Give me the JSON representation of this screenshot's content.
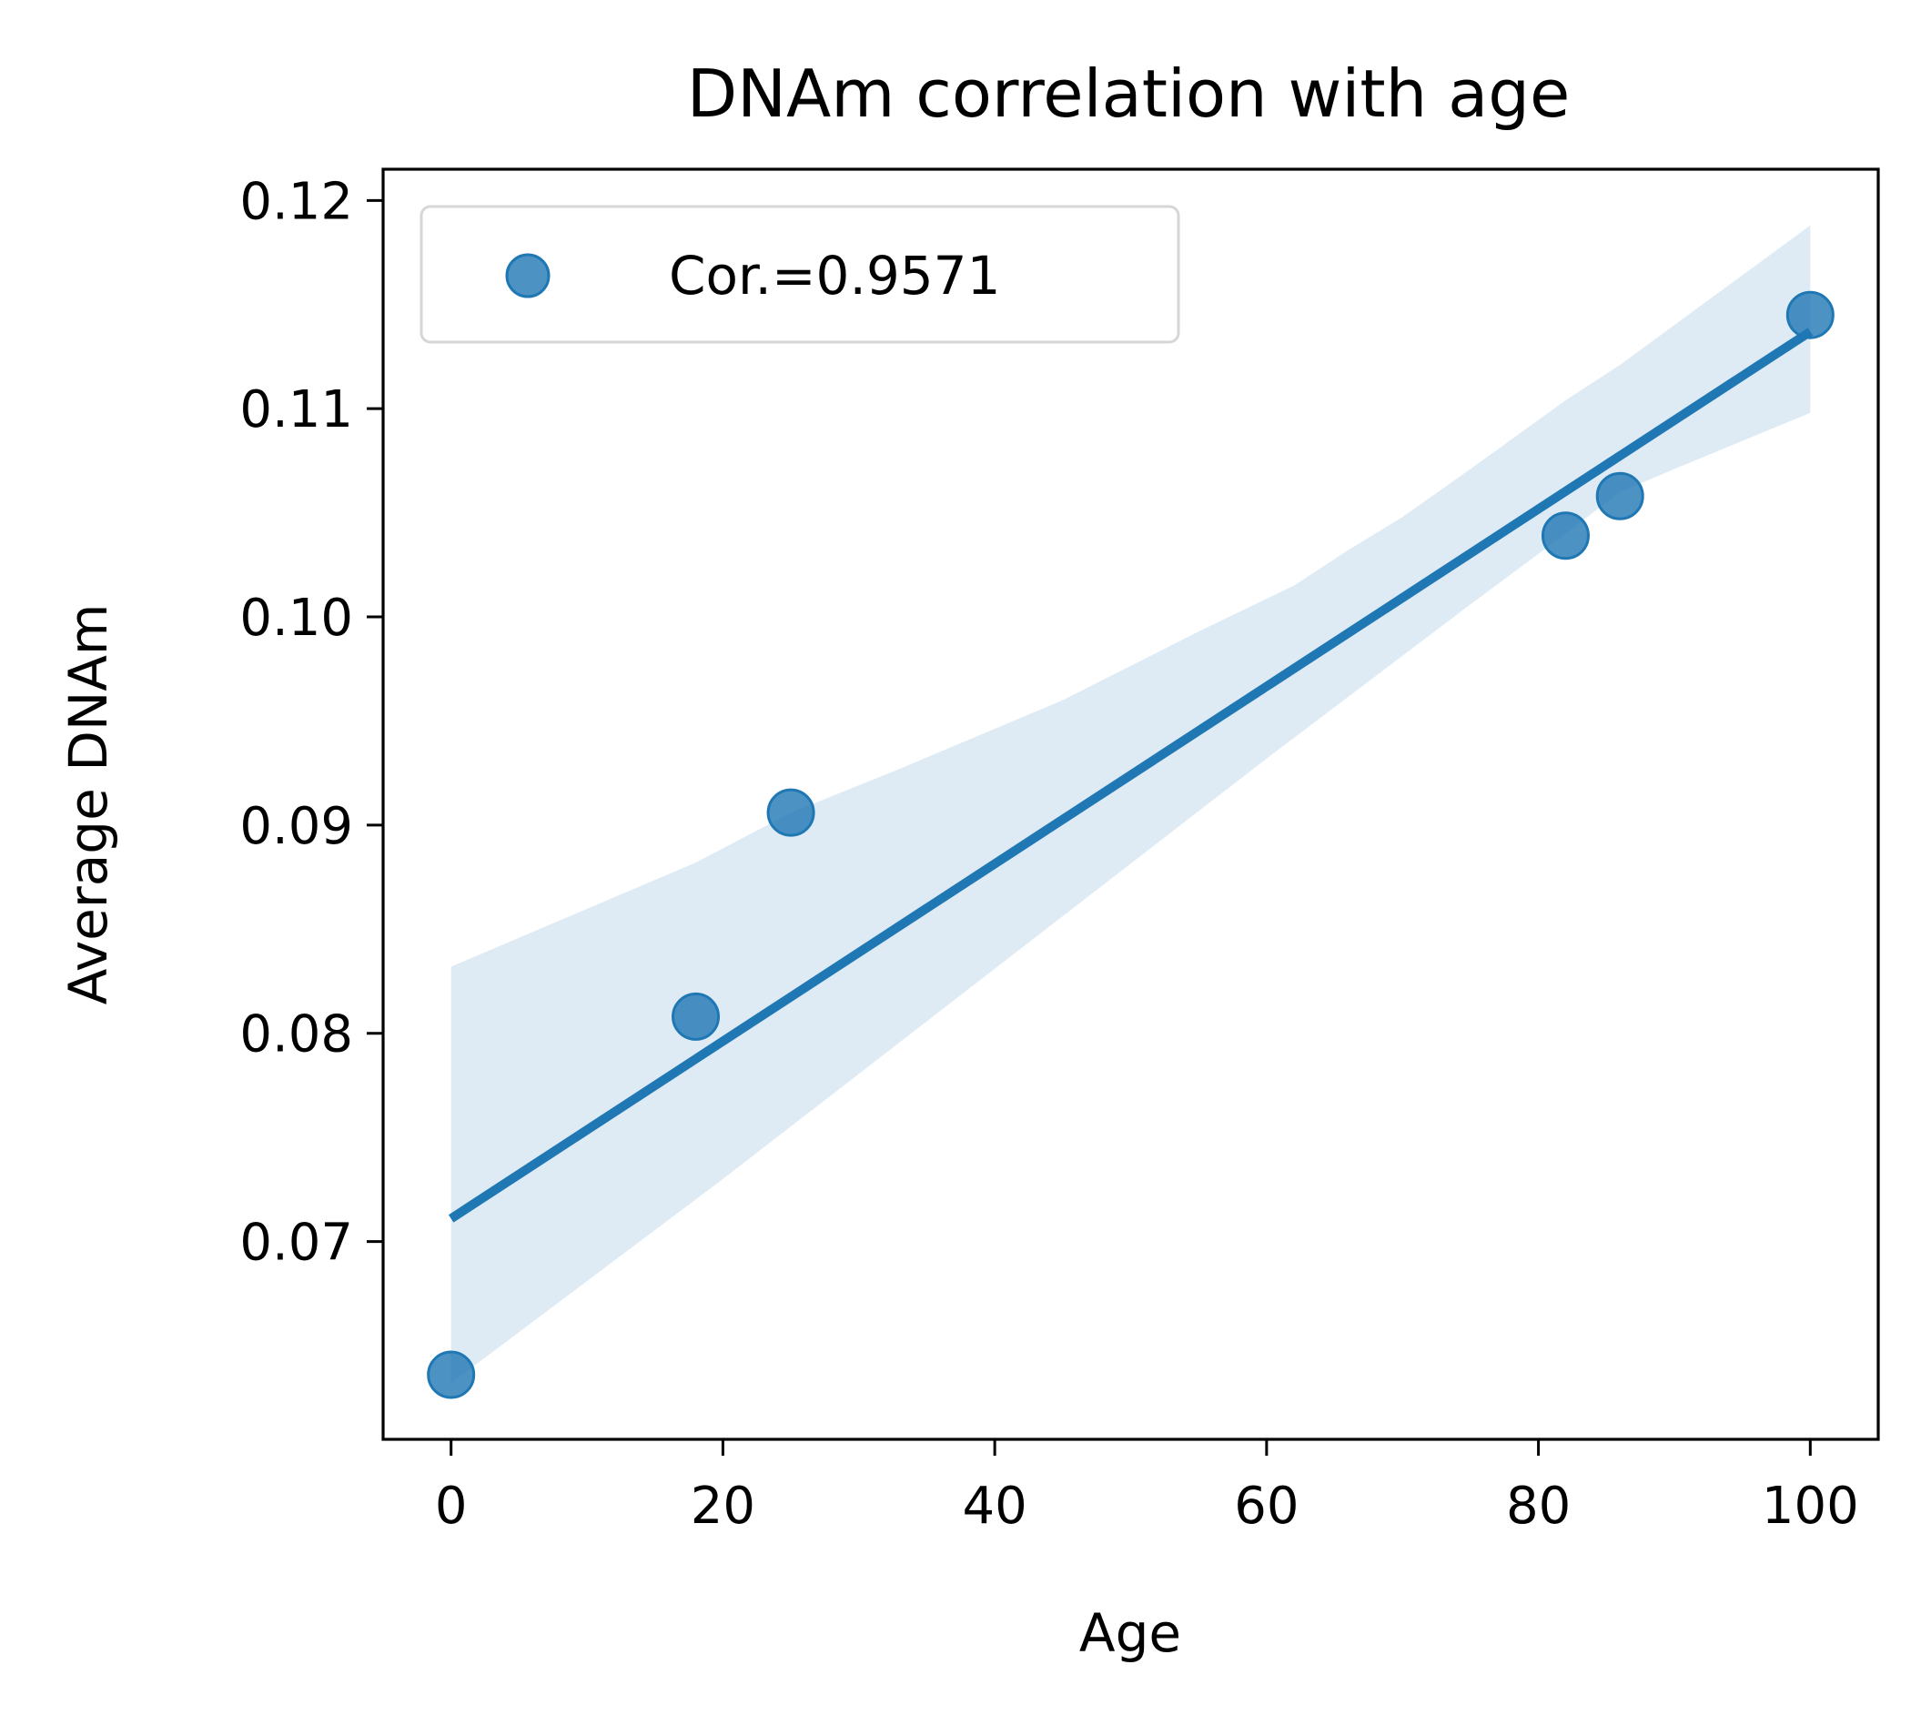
{
  "chart_data": {
    "type": "scatter",
    "title": "DNAm correlation with age",
    "xlabel": "Age",
    "ylabel": "Average DNAm",
    "xlim": [
      -5,
      105
    ],
    "ylim": [
      0.0605,
      0.1215
    ],
    "xticks": [
      0,
      20,
      40,
      60,
      80,
      100
    ],
    "yticks": [
      0.07,
      0.08,
      0.09,
      0.1,
      0.11,
      0.12
    ],
    "xtick_labels": [
      "0",
      "20",
      "40",
      "60",
      "80",
      "100"
    ],
    "ytick_labels": [
      "0.07",
      "0.08",
      "0.09",
      "0.10",
      "0.11",
      "0.12"
    ],
    "grid": false,
    "legend_position": "upper-left",
    "series": [
      {
        "name": "Cor.=0.9571",
        "color": "#1f77b4",
        "points": [
          {
            "x": 0,
            "y": 0.0636
          },
          {
            "x": 18,
            "y": 0.0808
          },
          {
            "x": 25,
            "y": 0.0906
          },
          {
            "x": 82,
            "y": 0.1039
          },
          {
            "x": 86,
            "y": 0.1058
          },
          {
            "x": 100,
            "y": 0.1145
          }
        ]
      }
    ],
    "regression": {
      "color": "#1f77b4",
      "line": [
        {
          "x": 0,
          "y": 0.0711
        },
        {
          "x": 100,
          "y": 0.1137
        }
      ],
      "ci_upper": [
        {
          "x": 0,
          "y": 0.0832
        },
        {
          "x": 18,
          "y": 0.0882
        },
        {
          "x": 25,
          "y": 0.0906
        },
        {
          "x": 33,
          "y": 0.0927
        },
        {
          "x": 45,
          "y": 0.096
        },
        {
          "x": 55,
          "y": 0.0993
        },
        {
          "x": 62,
          "y": 0.1015
        },
        {
          "x": 66,
          "y": 0.1032
        },
        {
          "x": 70,
          "y": 0.1048
        },
        {
          "x": 75,
          "y": 0.1071
        },
        {
          "x": 82,
          "y": 0.1104
        },
        {
          "x": 86,
          "y": 0.1121
        },
        {
          "x": 100,
          "y": 0.1188
        }
      ],
      "ci_lower": [
        {
          "x": 0,
          "y": 0.0632
        },
        {
          "x": 20,
          "y": 0.073
        },
        {
          "x": 40,
          "y": 0.0831
        },
        {
          "x": 60,
          "y": 0.0932
        },
        {
          "x": 75,
          "y": 0.1006
        },
        {
          "x": 82,
          "y": 0.104
        },
        {
          "x": 86,
          "y": 0.106
        },
        {
          "x": 90,
          "y": 0.1071
        },
        {
          "x": 100,
          "y": 0.1098
        }
      ]
    }
  }
}
